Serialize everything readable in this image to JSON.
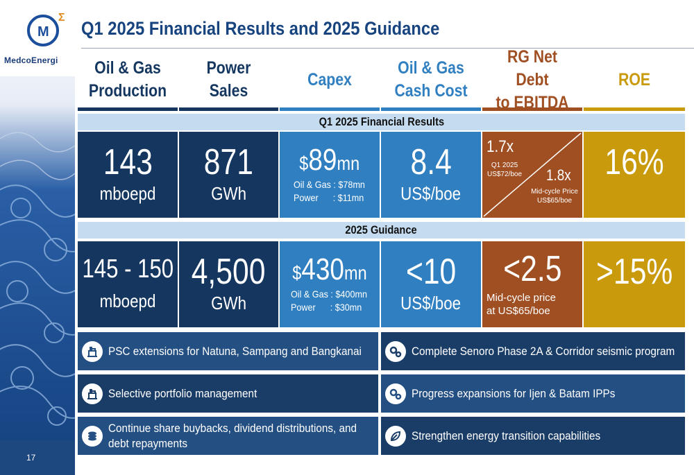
{
  "brand": {
    "name": "MedcoEnergi",
    "mark": "M"
  },
  "title": "Q1 2025 Financial Results and 2025 Guidance",
  "page_number": "17",
  "columns": [
    {
      "line1": "Oil & Gas",
      "line2": "Production",
      "color": "#14365f"
    },
    {
      "line1": "Power",
      "line2": "Sales",
      "color": "#14365f"
    },
    {
      "line1": "Capex",
      "line2": "",
      "color": "#2f7fc1"
    },
    {
      "line1": "Oil & Gas",
      "line2": "Cash Cost",
      "color": "#2f7fc1"
    },
    {
      "line1": "RG Net Debt",
      "line2": "to EBITDA",
      "color": "#a04f22"
    },
    {
      "line1": "ROE",
      "line2": "",
      "color": "#c89a0c"
    }
  ],
  "sections": {
    "results": "Q1 2025 Financial Results",
    "guidance": "2025 Guidance"
  },
  "results": {
    "production": {
      "value": "143",
      "unit": "mboepd"
    },
    "power": {
      "value": "871",
      "unit": "GWh"
    },
    "capex": {
      "prefix": "$",
      "value": "89",
      "suffix": "mn",
      "lines": "Oil & Gas : $78mn\nPower      : $11mn"
    },
    "cash_cost": {
      "value": "8.4",
      "unit": "US$/boe"
    },
    "net_debt": {
      "q1_value": "1.7x",
      "q1_label": "Q1 2025\nUS$72/boe",
      "mid_value": "1.8x",
      "mid_label": "Mid-cycle Price\nUS$65/boe"
    },
    "roe": {
      "value": "16%"
    }
  },
  "guidance": {
    "production": {
      "value": "145 - 150",
      "unit": "mboepd"
    },
    "power": {
      "value": "4,500",
      "unit": "GWh"
    },
    "capex": {
      "prefix": "$",
      "value": "430",
      "suffix": "mn",
      "lines": "Oil & Gas : $400mn\nPower      : $30mn"
    },
    "cash_cost": {
      "value": "<10",
      "unit": "US$/boe"
    },
    "net_debt": {
      "value": "<2.5",
      "note": "Mid-cycle price\nat US$65/boe"
    },
    "roe": {
      "value": ">15%"
    }
  },
  "actions": [
    {
      "text": "PSC extensions for Natuna, Sampang and Bangkanai",
      "icon": "oil-platform-icon"
    },
    {
      "text": "Complete Senoro Phase 2A & Corridor seismic program",
      "icon": "gears-icon"
    },
    {
      "text": "Selective portfolio management",
      "icon": "oil-platform-icon"
    },
    {
      "text": "Progress expansions for Ijen & Batam IPPs",
      "icon": "gears-icon"
    },
    {
      "text": "Continue share buybacks, dividend distributions, and\ndebt repayments",
      "icon": "coins-icon"
    },
    {
      "text": "Strengthen energy transition capabilities",
      "icon": "leaf-icon"
    }
  ],
  "colors": {
    "navy": "#14365f",
    "blue": "#2f7fc1",
    "brown": "#a04f22",
    "gold": "#c89a0c",
    "action_light": "#244f82",
    "action_dark": "#1a3d68",
    "title": "#17437f"
  }
}
